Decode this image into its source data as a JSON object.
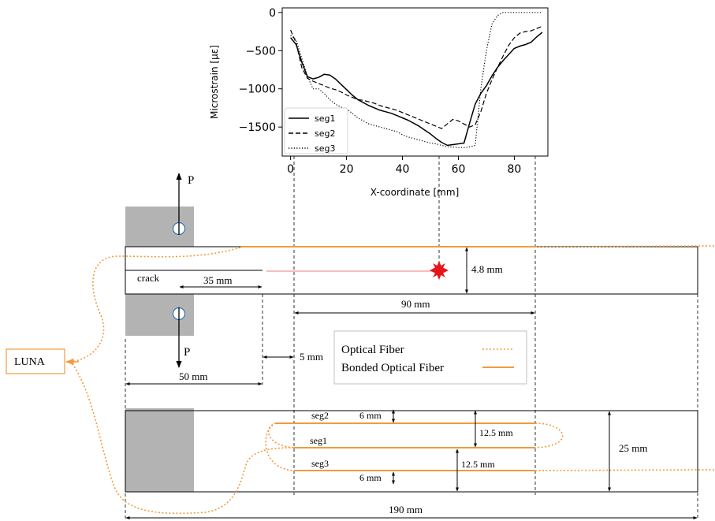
{
  "chart_data": {
    "type": "line",
    "xlabel": "X-coordinate [mm]",
    "ylabel": "Microstrain [με]",
    "xlim": [
      -3,
      92
    ],
    "ylim": [
      -1880,
      60
    ],
    "xticks": [
      0,
      20,
      40,
      60,
      80
    ],
    "yticks": [
      0,
      -500,
      -1000,
      -1500
    ],
    "xtick_labels": [
      "0",
      "20",
      "40",
      "60",
      "80"
    ],
    "ytick_labels": [
      "0",
      "−500",
      "−1000",
      "−1500"
    ],
    "legend_position": "lower-left",
    "grid": false,
    "series": [
      {
        "name": "seg1",
        "style": "solid",
        "x": [
          0,
          2,
          4,
          6,
          8,
          10,
          12,
          14,
          16,
          18,
          20,
          22,
          24,
          26,
          28,
          30,
          32,
          34,
          36,
          38,
          40,
          42,
          44,
          46,
          48,
          50,
          52,
          54,
          56,
          58,
          60,
          62,
          64,
          66,
          68,
          70,
          72,
          74,
          76,
          78,
          80,
          82,
          84,
          86,
          88,
          90
        ],
        "y": [
          -330,
          -420,
          -650,
          -840,
          -870,
          -850,
          -810,
          -820,
          -870,
          -940,
          -1010,
          -1080,
          -1140,
          -1180,
          -1220,
          -1250,
          -1280,
          -1300,
          -1320,
          -1350,
          -1380,
          -1410,
          -1450,
          -1490,
          -1540,
          -1590,
          -1650,
          -1700,
          -1740,
          -1730,
          -1720,
          -1710,
          -1450,
          -1200,
          -1060,
          -960,
          -830,
          -720,
          -630,
          -550,
          -470,
          -440,
          -420,
          -390,
          -320,
          -260
        ]
      },
      {
        "name": "seg2",
        "style": "dashed",
        "x": [
          0,
          2,
          4,
          6,
          8,
          10,
          12,
          14,
          16,
          18,
          20,
          22,
          24,
          26,
          28,
          30,
          32,
          34,
          36,
          38,
          40,
          42,
          44,
          46,
          48,
          50,
          52,
          54,
          56,
          58,
          60,
          62,
          64,
          66,
          68,
          70,
          72,
          74,
          76,
          78,
          80,
          82,
          84,
          86,
          88,
          90
        ],
        "y": [
          -230,
          -400,
          -720,
          -860,
          -900,
          -930,
          -960,
          -990,
          -1010,
          -1040,
          -1080,
          -1110,
          -1140,
          -1150,
          -1170,
          -1190,
          -1220,
          -1240,
          -1260,
          -1280,
          -1310,
          -1340,
          -1370,
          -1400,
          -1430,
          -1460,
          -1490,
          -1520,
          -1460,
          -1400,
          -1420,
          -1460,
          -1500,
          -1470,
          -1300,
          -1060,
          -880,
          -720,
          -570,
          -430,
          -330,
          -270,
          -250,
          -240,
          -210,
          -180
        ]
      },
      {
        "name": "seg3",
        "style": "dotted",
        "x": [
          0,
          2,
          4,
          6,
          8,
          10,
          12,
          14,
          16,
          18,
          20,
          22,
          24,
          26,
          28,
          30,
          32,
          34,
          36,
          38,
          40,
          42,
          44,
          46,
          48,
          50,
          52,
          54,
          56,
          58,
          60,
          62,
          64,
          66,
          68,
          70,
          72,
          74,
          76,
          78,
          80,
          82,
          84,
          86,
          88,
          90
        ],
        "y": [
          -300,
          -360,
          -600,
          -830,
          -1000,
          -1000,
          -1060,
          -1140,
          -1200,
          -1240,
          -1260,
          -1320,
          -1380,
          -1420,
          -1460,
          -1480,
          -1500,
          -1520,
          -1540,
          -1560,
          -1600,
          -1630,
          -1650,
          -1670,
          -1690,
          -1710,
          -1720,
          -1740,
          -1760,
          -1760,
          -1770,
          -1770,
          -1760,
          -1740,
          -1000,
          -500,
          -150,
          -40,
          0,
          0,
          0,
          0,
          0,
          0,
          0,
          0
        ]
      }
    ]
  },
  "diagram": {
    "load_label_top": "P",
    "load_label_bottom": "P",
    "crack_label": "crack",
    "dim_35": "35 mm",
    "dim_thickness": "4.8 mm",
    "dim_90": "90 mm",
    "dim_5": "5 mm",
    "dim_50": "50 mm",
    "dim_6_top": "6 mm",
    "dim_6_bottom": "6 mm",
    "dim_12_5_a": "12.5 mm",
    "dim_12_5_b": "12.5 mm",
    "dim_25": "25 mm",
    "dim_190": "190 mm",
    "seg_labels": [
      "seg2",
      "seg1",
      "seg3"
    ],
    "luna_label": "LUNA",
    "legend_optical": "Optical Fiber",
    "legend_bonded": "Bonded Optical Fiber",
    "colors": {
      "fiber": "#F39A3B",
      "crack_tip": "#E8141B",
      "crack_line": "#F4A6A6",
      "grip": "#B3B3B3"
    }
  }
}
